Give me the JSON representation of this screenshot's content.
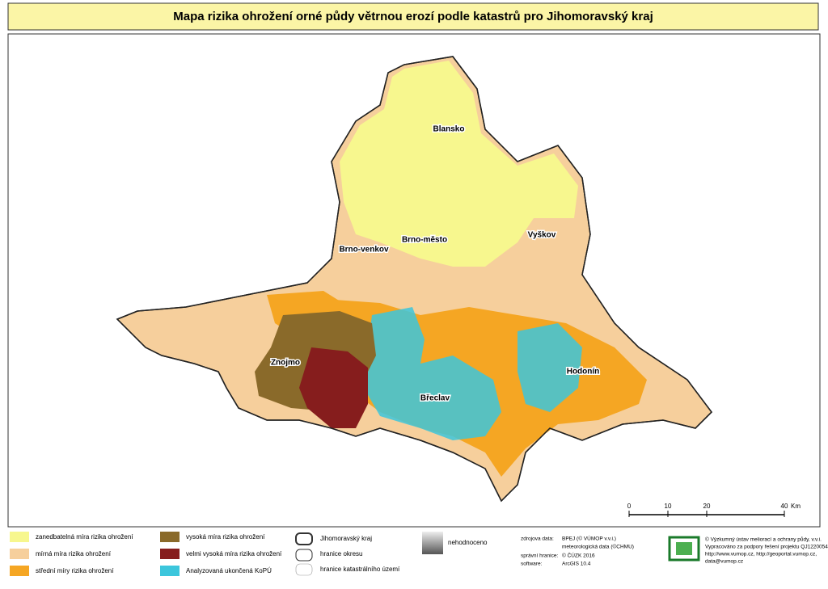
{
  "title": "Mapa rizika ohrožení orné půdy větrnou erozí podle katastrů pro Jihomoravský kraj",
  "districts": [
    {
      "label": "Blansko"
    },
    {
      "label": "Brno-venkov"
    },
    {
      "label": "Brno-město"
    },
    {
      "label": "Vyškov"
    },
    {
      "label": "Znojmo"
    },
    {
      "label": "Břeclav"
    },
    {
      "label": "Hodonín"
    }
  ],
  "scale_bar": {
    "ticks": [
      0,
      10,
      20,
      40
    ],
    "unit": "Km"
  },
  "legend": {
    "categories": [
      {
        "label": "zanedbatelná míra rizika ohrožení",
        "color": "#f7f78e"
      },
      {
        "label": "mírná míra rizika ohrožení",
        "color": "#f6cf9c"
      },
      {
        "label": "střední míry rizika ohrožení",
        "color": "#f5a623"
      },
      {
        "label": "vysoká míra rizika ohrožení",
        "color": "#8a6a2a"
      },
      {
        "label": "velmi vysoká míra rizika ohrožení",
        "color": "#861d1d"
      },
      {
        "label": "Analyzovaná ukončená KoPÚ",
        "color": "#3cc6dc"
      }
    ],
    "boundaries": [
      {
        "label": "Jihomoravský kraj"
      },
      {
        "label": "hranice okresu"
      },
      {
        "label": "hranice katastrálního území"
      }
    ],
    "unrated": "nehodnoceno"
  },
  "sources": {
    "data_label": "zdrojova data:",
    "data_lines": [
      "BPEJ (© VÚMOP v.v.i.)",
      "meteorologická data (©CHMU)"
    ],
    "admin_label": "správní hranice:",
    "admin_value": "© ČÚZK 2016",
    "software_label": "software:",
    "software_value": "ArcGIS 10.4"
  },
  "credits": [
    "© Výzkumný ústav meliorací a ochrany půdy, v.v.i.",
    "Vypracováno za podpory řešení projektu QJ1220054",
    "http://www.vumop.cz, http://geoportal.vumop.cz,",
    "data@vumop.cz"
  ]
}
